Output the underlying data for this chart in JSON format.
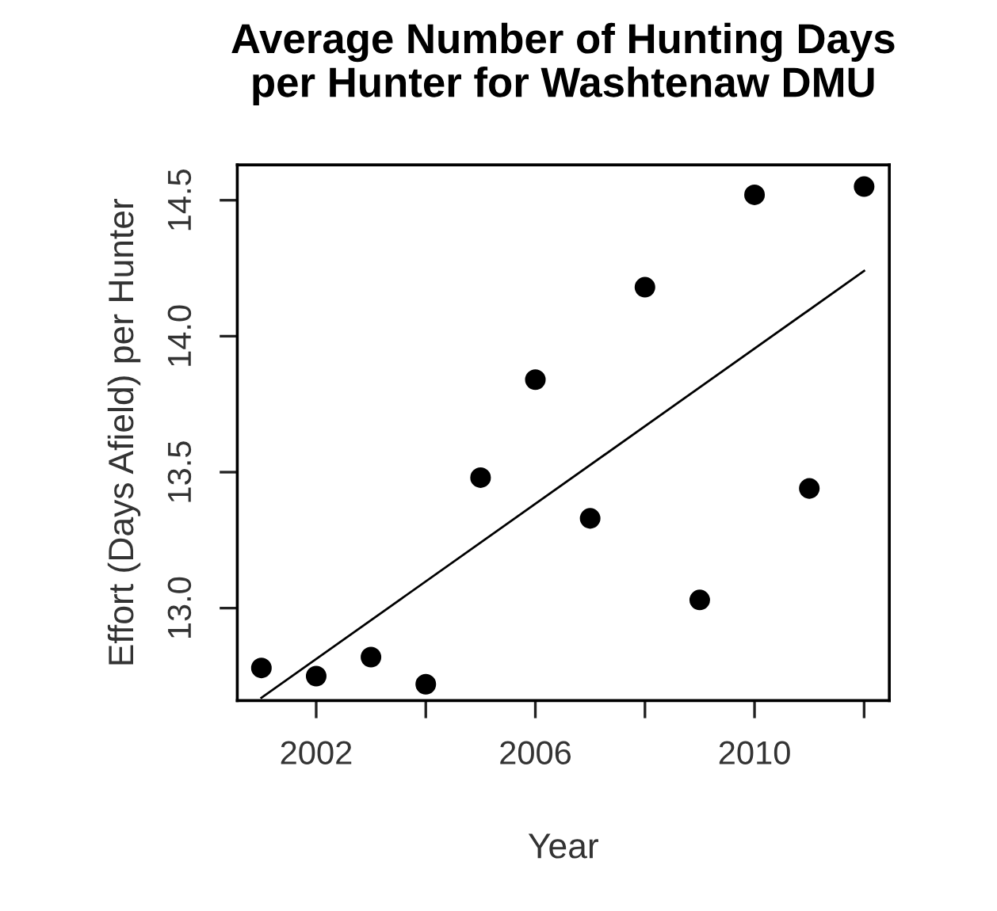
{
  "chart_data": {
    "type": "scatter",
    "title": "Average Number of Hunting Days\nper Hunter for Washtenaw DMU",
    "xlabel": "Year",
    "ylabel": "Effort (Days Afield) per Hunter",
    "x": [
      2001,
      2002,
      2003,
      2004,
      2005,
      2006,
      2007,
      2008,
      2009,
      2010,
      2011,
      2012
    ],
    "series": [
      {
        "color": "#000000",
        "marker": "circle",
        "values": [
          12.78,
          12.75,
          12.82,
          12.72,
          13.48,
          13.84,
          13.33,
          14.18,
          13.03,
          14.52,
          13.44,
          14.55
        ]
      },
      {
        "type": "line",
        "color": "#000000",
        "line_style": "solid",
        "x": [
          2001,
          2012
        ],
        "values": [
          12.67,
          14.24
        ]
      }
    ],
    "xlim": [
      2000.56,
      2012.46
    ],
    "ylim": [
      12.66,
      14.63
    ],
    "xticks": [
      2002,
      {
        "value": 2004,
        "label": null
      },
      2006,
      {
        "value": 2008,
        "label": null
      },
      2010,
      {
        "value": 2012,
        "label": null
      }
    ],
    "yticks": [
      {
        "value": 13,
        "label": "13.0"
      },
      13.5,
      {
        "value": 14,
        "label": "14.0"
      },
      14.5
    ],
    "grid": false,
    "legend": false
  }
}
